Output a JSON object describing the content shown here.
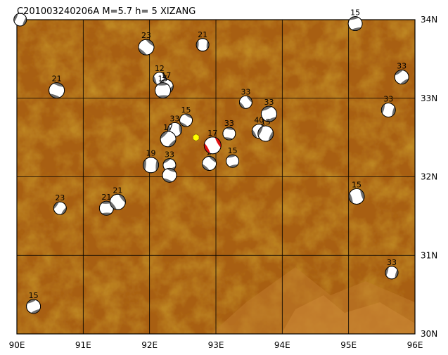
{
  "title": "C201003240206A  M=5.7  h=   5  XIZANG",
  "x_labels": [
    "90E",
    "91E",
    "92E",
    "93E",
    "94E",
    "95E",
    "96E"
  ],
  "y_labels": [
    "34N",
    "33N",
    "32N",
    "31N",
    "30N"
  ],
  "lon_range": [
    90,
    96
  ],
  "lat_range": [
    30,
    34
  ],
  "colors": {
    "terrain": "#a85f12",
    "terrain_dark": "#8a4a08",
    "terrain_light": "#c0782a",
    "grid": "#000000",
    "main_event": "#e01010",
    "epicenter_marker": "#ffff00"
  },
  "main_event": {
    "lon": 92.95,
    "lat": 32.4,
    "depth": "17"
  },
  "epicenter": {
    "lon": 92.7,
    "lat": 32.5
  },
  "events": [
    {
      "lon": 90.05,
      "lat": 34.0,
      "depth": ""
    },
    {
      "lon": 95.1,
      "lat": 33.95,
      "depth": "15"
    },
    {
      "lon": 91.95,
      "lat": 33.65,
      "depth": "23"
    },
    {
      "lon": 92.8,
      "lat": 33.68,
      "depth": "21"
    },
    {
      "lon": 95.8,
      "lat": 33.27,
      "depth": "33"
    },
    {
      "lon": 90.6,
      "lat": 33.1,
      "depth": "21"
    },
    {
      "lon": 92.15,
      "lat": 33.25,
      "depth": "12"
    },
    {
      "lon": 92.25,
      "lat": 33.15,
      "depth": "17"
    },
    {
      "lon": 92.2,
      "lat": 33.1,
      "depth": "15"
    },
    {
      "lon": 93.45,
      "lat": 32.95,
      "depth": "33"
    },
    {
      "lon": 95.6,
      "lat": 32.85,
      "depth": "33"
    },
    {
      "lon": 93.8,
      "lat": 32.8,
      "depth": "33"
    },
    {
      "lon": 92.55,
      "lat": 32.72,
      "depth": "15"
    },
    {
      "lon": 92.38,
      "lat": 32.6,
      "depth": "33"
    },
    {
      "lon": 92.28,
      "lat": 32.48,
      "depth": "17"
    },
    {
      "lon": 93.2,
      "lat": 32.55,
      "depth": "33"
    },
    {
      "lon": 93.65,
      "lat": 32.58,
      "depth": "40"
    },
    {
      "lon": 93.75,
      "lat": 32.55,
      "depth": "15"
    },
    {
      "lon": 93.25,
      "lat": 32.2,
      "depth": "15"
    },
    {
      "lon": 92.9,
      "lat": 32.17,
      "depth": "2"
    },
    {
      "lon": 92.02,
      "lat": 32.15,
      "depth": "19"
    },
    {
      "lon": 92.3,
      "lat": 32.15,
      "depth": "33"
    },
    {
      "lon": 92.3,
      "lat": 32.02,
      "depth": ""
    },
    {
      "lon": 95.12,
      "lat": 31.75,
      "depth": "15"
    },
    {
      "lon": 90.65,
      "lat": 31.6,
      "depth": "23"
    },
    {
      "lon": 91.35,
      "lat": 31.6,
      "depth": "21"
    },
    {
      "lon": 91.52,
      "lat": 31.68,
      "depth": "21"
    },
    {
      "lon": 95.65,
      "lat": 30.78,
      "depth": "33"
    },
    {
      "lon": 90.25,
      "lat": 30.35,
      "depth": "15"
    }
  ]
}
